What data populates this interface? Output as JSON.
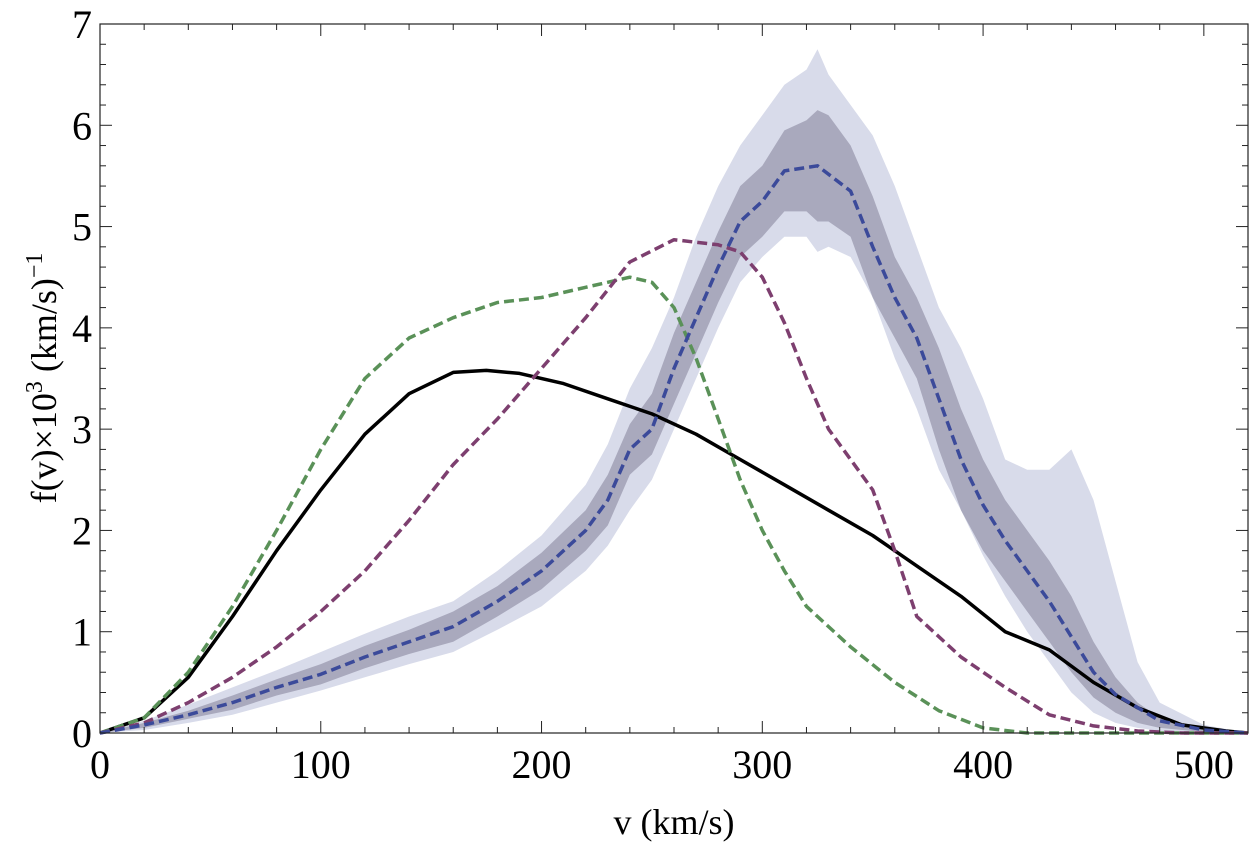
{
  "chart_data": {
    "type": "line",
    "title": "",
    "xlabel": "v (km/s)",
    "ylabel_parts": {
      "main": "f(v)×10",
      "exp": "3",
      "unit": " (km/s)",
      "unit_exp": "−1"
    },
    "xlim": [
      0,
      520
    ],
    "ylim": [
      0,
      7
    ],
    "x_ticks": [
      0,
      100,
      200,
      300,
      400,
      500
    ],
    "x_tick_labels": [
      "0",
      "100",
      "200",
      "300",
      "400",
      "500"
    ],
    "y_ticks": [
      0,
      1,
      2,
      3,
      4,
      5,
      6,
      7
    ],
    "y_tick_labels": [
      "0",
      "1",
      "2",
      "3",
      "4",
      "5",
      "6",
      "7"
    ],
    "grid": false,
    "series": [
      {
        "name": "black-solid",
        "color": "#000000",
        "dash": "solid",
        "points": [
          [
            0,
            0
          ],
          [
            20,
            0.15
          ],
          [
            40,
            0.55
          ],
          [
            60,
            1.15
          ],
          [
            80,
            1.8
          ],
          [
            100,
            2.4
          ],
          [
            120,
            2.95
          ],
          [
            140,
            3.35
          ],
          [
            160,
            3.56
          ],
          [
            175,
            3.58
          ],
          [
            190,
            3.55
          ],
          [
            210,
            3.45
          ],
          [
            230,
            3.3
          ],
          [
            250,
            3.15
          ],
          [
            270,
            2.95
          ],
          [
            290,
            2.7
          ],
          [
            310,
            2.45
          ],
          [
            330,
            2.2
          ],
          [
            350,
            1.95
          ],
          [
            370,
            1.65
          ],
          [
            390,
            1.35
          ],
          [
            410,
            1.0
          ],
          [
            430,
            0.82
          ],
          [
            450,
            0.5
          ],
          [
            470,
            0.25
          ],
          [
            490,
            0.08
          ],
          [
            510,
            0.02
          ],
          [
            520,
            0
          ]
        ]
      },
      {
        "name": "green-dashed",
        "color": "#5a9158",
        "dash": "dashed",
        "points": [
          [
            0,
            0
          ],
          [
            20,
            0.15
          ],
          [
            40,
            0.6
          ],
          [
            60,
            1.25
          ],
          [
            80,
            2.0
          ],
          [
            100,
            2.8
          ],
          [
            120,
            3.5
          ],
          [
            140,
            3.9
          ],
          [
            160,
            4.1
          ],
          [
            180,
            4.25
          ],
          [
            200,
            4.3
          ],
          [
            220,
            4.4
          ],
          [
            240,
            4.5
          ],
          [
            250,
            4.45
          ],
          [
            260,
            4.2
          ],
          [
            270,
            3.7
          ],
          [
            280,
            3.1
          ],
          [
            290,
            2.5
          ],
          [
            300,
            2.0
          ],
          [
            310,
            1.6
          ],
          [
            320,
            1.25
          ],
          [
            340,
            0.85
          ],
          [
            360,
            0.5
          ],
          [
            380,
            0.22
          ],
          [
            400,
            0.05
          ],
          [
            420,
            0
          ],
          [
            520,
            0
          ]
        ]
      },
      {
        "name": "purple-dashed",
        "color": "#7d3f6f",
        "dash": "dashed",
        "points": [
          [
            0,
            0
          ],
          [
            20,
            0.1
          ],
          [
            40,
            0.3
          ],
          [
            60,
            0.55
          ],
          [
            80,
            0.85
          ],
          [
            100,
            1.2
          ],
          [
            120,
            1.6
          ],
          [
            140,
            2.1
          ],
          [
            160,
            2.65
          ],
          [
            180,
            3.1
          ],
          [
            200,
            3.6
          ],
          [
            220,
            4.1
          ],
          [
            240,
            4.65
          ],
          [
            260,
            4.87
          ],
          [
            280,
            4.82
          ],
          [
            290,
            4.75
          ],
          [
            300,
            4.5
          ],
          [
            310,
            4.05
          ],
          [
            320,
            3.5
          ],
          [
            330,
            3.0
          ],
          [
            350,
            2.4
          ],
          [
            360,
            1.8
          ],
          [
            370,
            1.15
          ],
          [
            390,
            0.75
          ],
          [
            410,
            0.45
          ],
          [
            430,
            0.18
          ],
          [
            450,
            0.07
          ],
          [
            470,
            0.02
          ],
          [
            490,
            0
          ],
          [
            520,
            0
          ]
        ]
      },
      {
        "name": "blue-dashed",
        "color": "#3b4a9a",
        "dash": "dashed",
        "points": [
          [
            0,
            0
          ],
          [
            20,
            0.08
          ],
          [
            40,
            0.18
          ],
          [
            60,
            0.3
          ],
          [
            80,
            0.45
          ],
          [
            100,
            0.58
          ],
          [
            120,
            0.75
          ],
          [
            140,
            0.9
          ],
          [
            160,
            1.05
          ],
          [
            180,
            1.3
          ],
          [
            200,
            1.6
          ],
          [
            220,
            2.0
          ],
          [
            230,
            2.3
          ],
          [
            240,
            2.8
          ],
          [
            250,
            3.0
          ],
          [
            260,
            3.6
          ],
          [
            270,
            4.1
          ],
          [
            280,
            4.6
          ],
          [
            290,
            5.05
          ],
          [
            300,
            5.25
          ],
          [
            310,
            5.55
          ],
          [
            325,
            5.6
          ],
          [
            340,
            5.35
          ],
          [
            350,
            4.8
          ],
          [
            360,
            4.3
          ],
          [
            370,
            3.9
          ],
          [
            380,
            3.3
          ],
          [
            390,
            2.7
          ],
          [
            400,
            2.25
          ],
          [
            410,
            1.9
          ],
          [
            420,
            1.6
          ],
          [
            430,
            1.3
          ],
          [
            440,
            0.95
          ],
          [
            450,
            0.6
          ],
          [
            460,
            0.38
          ],
          [
            480,
            0.12
          ],
          [
            500,
            0.03
          ],
          [
            520,
            0
          ]
        ]
      }
    ],
    "bands": [
      {
        "name": "outer-band",
        "color": "#d8dbea",
        "x": [
          0,
          20,
          40,
          60,
          80,
          100,
          120,
          140,
          160,
          180,
          200,
          220,
          230,
          240,
          250,
          260,
          270,
          280,
          290,
          300,
          310,
          320,
          325,
          330,
          340,
          350,
          360,
          370,
          380,
          390,
          400,
          410,
          420,
          430,
          440,
          450,
          460,
          470,
          480,
          500,
          520
        ],
        "upper": [
          0,
          0.12,
          0.28,
          0.45,
          0.62,
          0.8,
          0.98,
          1.15,
          1.3,
          1.6,
          1.95,
          2.45,
          2.85,
          3.4,
          3.8,
          4.3,
          4.9,
          5.4,
          5.8,
          6.1,
          6.4,
          6.55,
          6.75,
          6.5,
          6.2,
          5.9,
          5.4,
          4.8,
          4.2,
          3.8,
          3.3,
          2.7,
          2.6,
          2.6,
          2.8,
          2.3,
          1.5,
          0.7,
          0.3,
          0.08,
          0
        ],
        "lower": [
          0,
          0.03,
          0.1,
          0.18,
          0.3,
          0.42,
          0.55,
          0.68,
          0.8,
          1.02,
          1.25,
          1.6,
          1.85,
          2.2,
          2.5,
          3.0,
          3.5,
          4.0,
          4.45,
          4.7,
          4.9,
          4.9,
          4.75,
          4.8,
          4.7,
          4.3,
          3.7,
          3.2,
          2.6,
          2.2,
          1.75,
          1.35,
          1.0,
          0.7,
          0.4,
          0.2,
          0.1,
          0.05,
          0.02,
          0,
          0
        ]
      },
      {
        "name": "inner-band",
        "color": "#a9a9bd",
        "x": [
          0,
          20,
          40,
          60,
          80,
          100,
          120,
          140,
          160,
          180,
          200,
          220,
          230,
          240,
          250,
          260,
          270,
          280,
          290,
          300,
          310,
          320,
          325,
          330,
          340,
          350,
          360,
          370,
          380,
          390,
          400,
          410,
          420,
          430,
          440,
          450,
          460,
          470,
          480,
          500,
          520
        ],
        "upper": [
          0,
          0.1,
          0.22,
          0.37,
          0.53,
          0.68,
          0.86,
          1.02,
          1.2,
          1.45,
          1.78,
          2.2,
          2.55,
          3.05,
          3.35,
          3.95,
          4.45,
          4.95,
          5.4,
          5.6,
          5.95,
          6.05,
          6.15,
          6.1,
          5.8,
          5.3,
          4.7,
          4.3,
          3.8,
          3.2,
          2.7,
          2.3,
          2.0,
          1.7,
          1.35,
          0.9,
          0.55,
          0.3,
          0.15,
          0.05,
          0
        ],
        "lower": [
          0,
          0.05,
          0.14,
          0.23,
          0.37,
          0.48,
          0.64,
          0.78,
          0.9,
          1.15,
          1.42,
          1.8,
          2.05,
          2.55,
          2.75,
          3.25,
          3.75,
          4.25,
          4.7,
          4.9,
          5.15,
          5.15,
          5.05,
          5.05,
          4.9,
          4.3,
          3.9,
          3.5,
          2.8,
          2.2,
          1.8,
          1.5,
          1.2,
          0.9,
          0.6,
          0.35,
          0.2,
          0.1,
          0.05,
          0.01,
          0
        ]
      }
    ]
  }
}
